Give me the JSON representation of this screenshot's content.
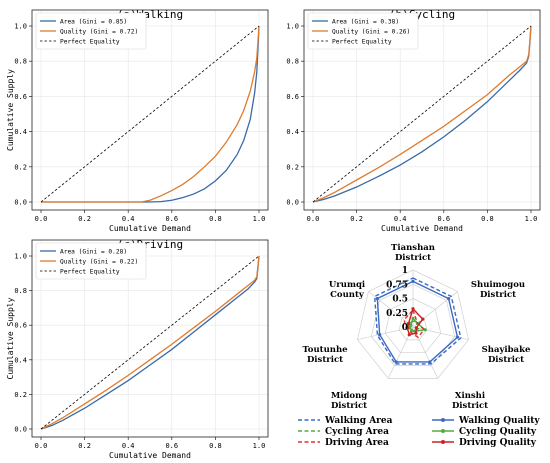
{
  "charts": [
    {
      "type": "line",
      "title": "(a)Walking",
      "xlabel": "Cumulative Demand",
      "ylabel": "Cumulative Supply",
      "xticks": [
        "0.0",
        "0.2",
        "0.4",
        "0.6",
        "0.8",
        "1.0"
      ],
      "yticks": [
        "0.0",
        "0.2",
        "0.4",
        "0.6",
        "0.8",
        "1.0"
      ],
      "xlim": [
        0,
        1
      ],
      "ylim": [
        0,
        1
      ],
      "legend": {
        "placement": "top-left"
      },
      "series": [
        {
          "name": "Area (Gini = 0.85)",
          "color": "#3a6aa6",
          "points": [
            [
              0,
              0
            ],
            [
              0.49,
              0
            ],
            [
              0.55,
              0.002
            ],
            [
              0.6,
              0.01
            ],
            [
              0.65,
              0.025
            ],
            [
              0.7,
              0.045
            ],
            [
              0.75,
              0.075
            ],
            [
              0.8,
              0.12
            ],
            [
              0.85,
              0.18
            ],
            [
              0.9,
              0.27
            ],
            [
              0.93,
              0.35
            ],
            [
              0.96,
              0.47
            ],
            [
              0.98,
              0.62
            ],
            [
              0.99,
              0.74
            ],
            [
              1.0,
              1.0
            ]
          ]
        },
        {
          "name": "Quality (Gini = 0.72)",
          "color": "#e07b2e",
          "points": [
            [
              0,
              0
            ],
            [
              0.46,
              0
            ],
            [
              0.5,
              0.01
            ],
            [
              0.55,
              0.035
            ],
            [
              0.6,
              0.065
            ],
            [
              0.65,
              0.1
            ],
            [
              0.7,
              0.145
            ],
            [
              0.75,
              0.2
            ],
            [
              0.8,
              0.26
            ],
            [
              0.85,
              0.34
            ],
            [
              0.9,
              0.44
            ],
            [
              0.93,
              0.52
            ],
            [
              0.96,
              0.63
            ],
            [
              0.98,
              0.74
            ],
            [
              0.99,
              0.82
            ],
            [
              1.0,
              1.0
            ]
          ]
        },
        {
          "name": "Perfect Equality",
          "color": "#000000",
          "dashed": true,
          "points": [
            [
              0,
              0
            ],
            [
              1,
              1
            ]
          ]
        }
      ]
    },
    {
      "type": "line",
      "title": "(b)Cycling",
      "xlabel": "Cumulative Demand",
      "ylabel": "",
      "xticks": [
        "0.0",
        "0.2",
        "0.4",
        "0.6",
        "0.8",
        "1.0"
      ],
      "yticks": [
        "0.0",
        "0.2",
        "0.4",
        "0.6",
        "0.8",
        "1.0"
      ],
      "xlim": [
        0,
        1
      ],
      "ylim": [
        0,
        1
      ],
      "legend": {
        "placement": "top-left"
      },
      "series": [
        {
          "name": "Area (Gini = 0.38)",
          "color": "#3a6aa6",
          "points": [
            [
              0,
              0
            ],
            [
              0.05,
              0.015
            ],
            [
              0.1,
              0.035
            ],
            [
              0.2,
              0.085
            ],
            [
              0.3,
              0.145
            ],
            [
              0.4,
              0.21
            ],
            [
              0.5,
              0.285
            ],
            [
              0.6,
              0.37
            ],
            [
              0.7,
              0.465
            ],
            [
              0.8,
              0.57
            ],
            [
              0.9,
              0.69
            ],
            [
              0.95,
              0.75
            ],
            [
              0.98,
              0.79
            ],
            [
              0.99,
              0.83
            ],
            [
              1.0,
              1.0
            ]
          ]
        },
        {
          "name": "Quality (Gini = 0.26)",
          "color": "#e07b2e",
          "points": [
            [
              0,
              0
            ],
            [
              0.05,
              0.025
            ],
            [
              0.1,
              0.055
            ],
            [
              0.2,
              0.125
            ],
            [
              0.3,
              0.195
            ],
            [
              0.4,
              0.27
            ],
            [
              0.5,
              0.35
            ],
            [
              0.6,
              0.43
            ],
            [
              0.7,
              0.52
            ],
            [
              0.8,
              0.61
            ],
            [
              0.9,
              0.72
            ],
            [
              0.95,
              0.77
            ],
            [
              0.98,
              0.8
            ],
            [
              0.99,
              0.84
            ],
            [
              1.0,
              1.0
            ]
          ]
        },
        {
          "name": "Perfect Equality",
          "color": "#000000",
          "dashed": true,
          "points": [
            [
              0,
              0
            ],
            [
              1,
              1
            ]
          ]
        }
      ]
    },
    {
      "type": "line",
      "title": "(c)Driving",
      "xlabel": "Cumulative Demand",
      "ylabel": "Cumulative Supply",
      "xticks": [
        "0.0",
        "0.2",
        "0.4",
        "0.6",
        "0.8",
        "1.0"
      ],
      "yticks": [
        "0.0",
        "0.2",
        "0.4",
        "0.6",
        "0.8",
        "1.0"
      ],
      "xlim": [
        0,
        1
      ],
      "ylim": [
        0,
        1
      ],
      "legend": {
        "placement": "top-left"
      },
      "series": [
        {
          "name": "Area (Gini = 0.28)",
          "color": "#3a6aa6",
          "points": [
            [
              0,
              0
            ],
            [
              0.05,
              0.02
            ],
            [
              0.1,
              0.05
            ],
            [
              0.2,
              0.12
            ],
            [
              0.3,
              0.2
            ],
            [
              0.4,
              0.28
            ],
            [
              0.5,
              0.37
            ],
            [
              0.6,
              0.46
            ],
            [
              0.7,
              0.56
            ],
            [
              0.8,
              0.66
            ],
            [
              0.9,
              0.76
            ],
            [
              0.95,
              0.81
            ],
            [
              0.98,
              0.85
            ],
            [
              0.99,
              0.87
            ],
            [
              1.0,
              1.0
            ]
          ]
        },
        {
          "name": "Quality (Gini = 0.22)",
          "color": "#e07b2e",
          "points": [
            [
              0,
              0
            ],
            [
              0.05,
              0.03
            ],
            [
              0.1,
              0.065
            ],
            [
              0.2,
              0.145
            ],
            [
              0.3,
              0.225
            ],
            [
              0.4,
              0.31
            ],
            [
              0.5,
              0.4
            ],
            [
              0.6,
              0.49
            ],
            [
              0.7,
              0.585
            ],
            [
              0.8,
              0.68
            ],
            [
              0.9,
              0.78
            ],
            [
              0.95,
              0.83
            ],
            [
              0.98,
              0.86
            ],
            [
              0.99,
              0.88
            ],
            [
              1.0,
              1.0
            ]
          ]
        },
        {
          "name": "Perfect Equality",
          "color": "#000000",
          "dashed": true,
          "points": [
            [
              0,
              0
            ],
            [
              1,
              1
            ]
          ]
        }
      ]
    }
  ],
  "radar": {
    "type": "radar",
    "axes": [
      "Tianshan District",
      "Shuimogou District",
      "Shayibake District",
      "Xinshi District",
      "Midong District",
      "Toutunhe District",
      "Urumqi County"
    ],
    "axis_lines": [
      [
        "Tianshan",
        "District"
      ],
      [
        "Shuimogou",
        "District"
      ],
      [
        "Shayibake",
        "District"
      ],
      [
        "Xinshi",
        "District"
      ],
      [
        "Midong",
        "District"
      ],
      [
        "Toutunhe",
        "District"
      ],
      [
        "Urumqi",
        "County"
      ]
    ],
    "rticks": [
      "0",
      "0.25",
      "0.5",
      "0.75",
      "1"
    ],
    "rlim": [
      0,
      1
    ],
    "series": [
      {
        "name": "Walking Area",
        "color": "#3a6ac6",
        "dashed": true,
        "marker": false,
        "values": [
          0.86,
          0.86,
          0.86,
          0.72,
          0.72,
          0.64,
          0.86
        ]
      },
      {
        "name": "Walking Quality",
        "color": "#3a6ac6",
        "dashed": false,
        "marker": true,
        "values": [
          0.8,
          0.8,
          0.8,
          0.68,
          0.68,
          0.6,
          0.8
        ]
      },
      {
        "name": "Cycling Area",
        "color": "#55aa44",
        "dashed": true,
        "marker": false,
        "values": [
          0.1,
          0.15,
          0.1,
          0.1,
          0.08,
          0.06,
          0.1
        ]
      },
      {
        "name": "Cycling Quality",
        "color": "#55aa44",
        "dashed": false,
        "marker": true,
        "values": [
          0.15,
          0.1,
          0.22,
          0.08,
          0.06,
          0.06,
          0.05
        ]
      },
      {
        "name": "Driving Area",
        "color": "#dd3333",
        "dashed": true,
        "marker": false,
        "values": [
          0.3,
          0.1,
          0.2,
          0.2,
          0.1,
          0.12,
          0.2
        ]
      },
      {
        "name": "Driving Quality",
        "color": "#cc2222",
        "dashed": false,
        "marker": true,
        "values": [
          0.32,
          0.22,
          0.06,
          0.12,
          0.15,
          0.1,
          0.1
        ]
      }
    ]
  }
}
